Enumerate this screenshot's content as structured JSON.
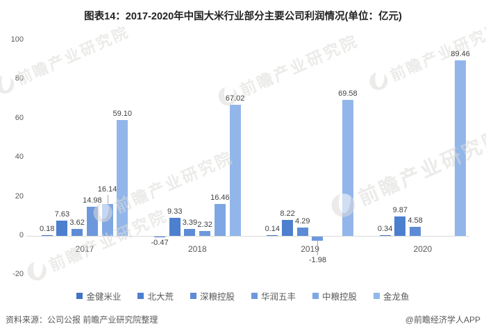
{
  "title": "图表14：2017-2020年中国大米行业部分主要公司利润情况(单位：亿元)",
  "watermark": {
    "text": "前瞻产业研究院"
  },
  "footer": {
    "source": "资料来源：公司公报 前瞻产业研究院整理",
    "credit": "@前瞻经济学人APP"
  },
  "chart_data": {
    "type": "bar",
    "title": "图表14：2017-2020年中国大米行业部分主要公司利润情况",
    "unit": "亿元",
    "categories": [
      "2017",
      "2018",
      "2019",
      "2020"
    ],
    "series": [
      {
        "name": "金健米业",
        "color": "#4472C4",
        "values": [
          0.18,
          -0.47,
          0.14,
          0.34
        ]
      },
      {
        "name": "北大荒",
        "color": "#4D7FCF",
        "values": [
          7.63,
          9.33,
          8.22,
          9.87
        ]
      },
      {
        "name": "深粮控股",
        "color": "#5D8BD6",
        "values": [
          3.62,
          3.39,
          4.29,
          4.58
        ]
      },
      {
        "name": "华润五丰",
        "color": "#6D99DC",
        "values": [
          14.98,
          2.32,
          -1.98,
          null
        ]
      },
      {
        "name": "中粮控股",
        "color": "#7EA7E3",
        "values": [
          16.14,
          16.46,
          null,
          null
        ]
      },
      {
        "name": "金龙鱼",
        "color": "#92B6EA",
        "values": [
          59.1,
          67.02,
          69.58,
          89.46
        ]
      }
    ],
    "ylim": [
      -20,
      100
    ],
    "yticks": [
      100,
      80,
      60,
      40,
      20,
      0,
      -20
    ],
    "grid": false,
    "legend_position": "bottom",
    "value_label_decimals": 2,
    "label_adjust": [
      {
        "series_index": 4,
        "category_index": 0,
        "dy": -12,
        "leader": true
      },
      {
        "series_index": 3,
        "category_index": 2,
        "dy": 20,
        "leader": true
      }
    ]
  }
}
